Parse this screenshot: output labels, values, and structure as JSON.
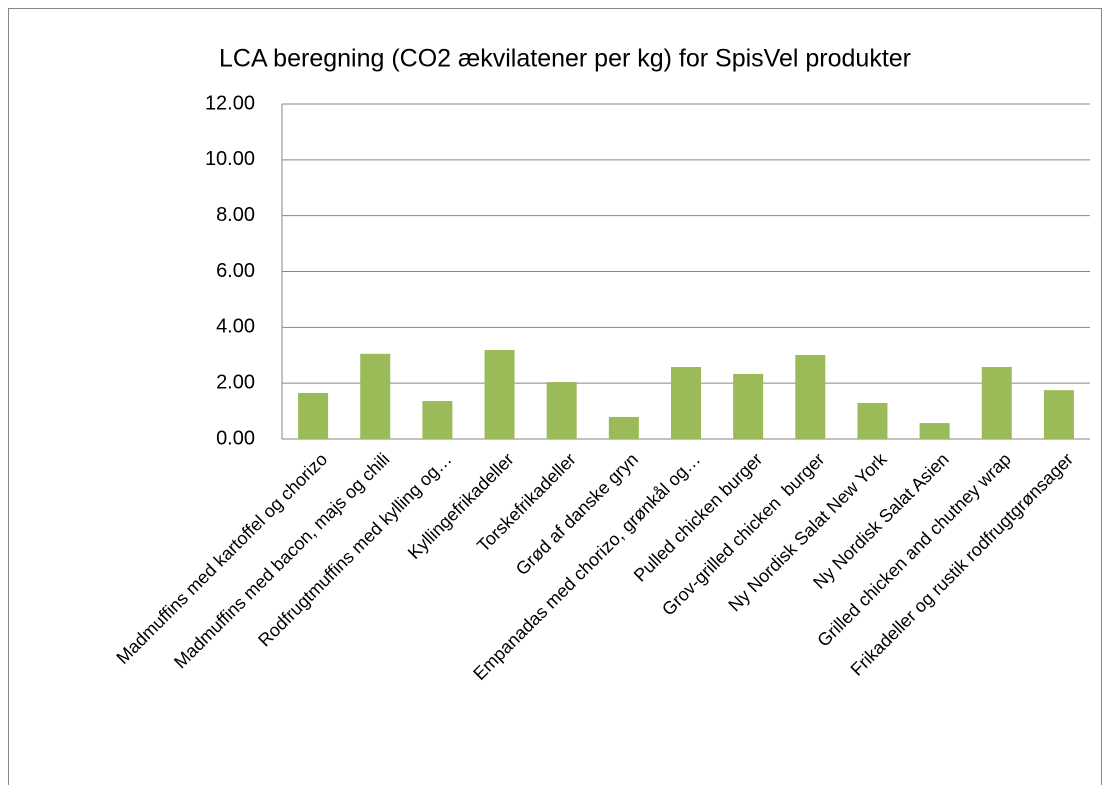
{
  "chart_data": {
    "type": "bar",
    "title": "LCA beregning (CO2 ækvilatener per kg) for SpisVel produkter",
    "categories": [
      "Madmuffins med kartoffel og chorizo",
      "Madmuffins med bacon, majs og chili",
      "Rodfrugtmuffins med kylling og…",
      "Kyllingefrikadeller",
      "Torskefrikadeller",
      "Grød af danske gryn",
      "Empanadas med chorizo, grønkål og…",
      "Pulled chicken burger",
      "Grov-grilled chicken  burger",
      "Ny Nordisk Salat New York",
      "Ny Nordisk Salat Asien",
      "Grilled chicken and chutney wrap",
      "Frikadeller og rustik rodfrugtgrønsager"
    ],
    "values": [
      1.65,
      3.05,
      1.36,
      3.19,
      2.04,
      0.79,
      2.58,
      2.33,
      3.01,
      1.29,
      0.57,
      2.58,
      1.75
    ],
    "color": "#9bbb59",
    "ylim": [
      0,
      12
    ],
    "yticks": [
      {
        "value": 0,
        "label": "0.00"
      },
      {
        "value": 2,
        "label": "2.00"
      },
      {
        "value": 4,
        "label": "4.00"
      },
      {
        "value": 6,
        "label": "6.00"
      },
      {
        "value": 8,
        "label": "8.00"
      },
      {
        "value": 10,
        "label": "10.00"
      },
      {
        "value": 12,
        "label": "12.00"
      }
    ],
    "grid": true
  }
}
